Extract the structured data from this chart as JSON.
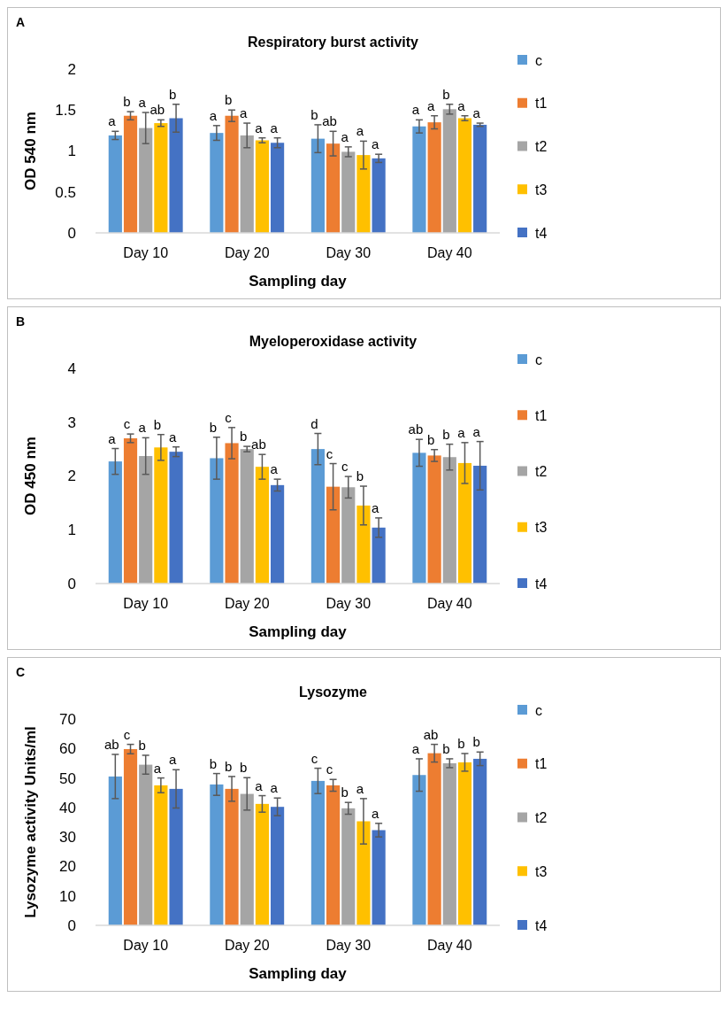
{
  "chart_data": [
    {
      "type": "bar",
      "title": "Respiratory burst activity",
      "xlabel": "Sampling day",
      "ylabel": "OD 540 nm",
      "annotations": [
        "A"
      ],
      "legend": "right",
      "categories": [
        "Day 10",
        "Day 20",
        "Day 30",
        "Day 40"
      ],
      "ylim": [
        0,
        2
      ],
      "yticks": [
        0,
        0.5,
        1,
        1.5,
        2
      ],
      "series": [
        {
          "name": "c",
          "color": "#5b9bd5",
          "values": [
            1.19,
            1.22,
            1.15,
            1.3
          ],
          "errors": [
            0.05,
            0.09,
            0.17,
            0.08
          ],
          "value_labels": [
            "a",
            "a",
            "b",
            "a"
          ]
        },
        {
          "name": "t1",
          "color": "#ed7d31",
          "values": [
            1.43,
            1.43,
            1.09,
            1.35
          ],
          "errors": [
            0.05,
            0.07,
            0.15,
            0.08
          ],
          "value_labels": [
            "b",
            "b",
            "ab",
            "a"
          ]
        },
        {
          "name": "t2",
          "color": "#a5a5a5",
          "values": [
            1.28,
            1.19,
            0.99,
            1.51
          ],
          "errors": [
            0.19,
            0.15,
            0.06,
            0.06
          ],
          "value_labels": [
            "a",
            "a",
            "a",
            "b"
          ]
        },
        {
          "name": "t3",
          "color": "#ffc000",
          "values": [
            1.34,
            1.13,
            0.95,
            1.4
          ],
          "errors": [
            0.04,
            0.03,
            0.17,
            0.03
          ],
          "value_labels": [
            "ab",
            "a",
            "a",
            "a"
          ]
        },
        {
          "name": "t4",
          "color": "#4472c4",
          "values": [
            1.4,
            1.1,
            0.91,
            1.32
          ],
          "errors": [
            0.17,
            0.06,
            0.05,
            0.02
          ],
          "value_labels": [
            "b",
            "a",
            "a",
            "a"
          ]
        }
      ]
    },
    {
      "type": "bar",
      "title": "Myeloperoxidase activity",
      "xlabel": "Sampling day",
      "ylabel": "OD 450 nm",
      "annotations": [
        "B"
      ],
      "legend": "right",
      "categories": [
        "Day 10",
        "Day 20",
        "Day 30",
        "Day 40"
      ],
      "ylim": [
        0,
        4
      ],
      "yticks": [
        0,
        1,
        2,
        3,
        4
      ],
      "series": [
        {
          "name": "c",
          "color": "#5b9bd5",
          "values": [
            2.27,
            2.33,
            2.5,
            2.43
          ],
          "errors": [
            0.24,
            0.39,
            0.29,
            0.25
          ],
          "value_labels": [
            "a",
            "b",
            "d",
            "ab"
          ]
        },
        {
          "name": "t1",
          "color": "#ed7d31",
          "values": [
            2.7,
            2.61,
            1.8,
            2.38
          ],
          "errors": [
            0.08,
            0.29,
            0.43,
            0.11
          ],
          "value_labels": [
            "c",
            "c",
            "c",
            "b"
          ]
        },
        {
          "name": "t2",
          "color": "#a5a5a5",
          "values": [
            2.37,
            2.5,
            1.79,
            2.35
          ],
          "errors": [
            0.34,
            0.05,
            0.2,
            0.24
          ],
          "value_labels": [
            "a",
            "b",
            "c",
            "b"
          ]
        },
        {
          "name": "t3",
          "color": "#ffc000",
          "values": [
            2.53,
            2.17,
            1.45,
            2.24
          ],
          "errors": [
            0.24,
            0.23,
            0.36,
            0.38
          ],
          "value_labels": [
            "b",
            "ab",
            "b",
            "a"
          ]
        },
        {
          "name": "t4",
          "color": "#4472c4",
          "values": [
            2.45,
            1.83,
            1.04,
            2.19
          ],
          "errors": [
            0.09,
            0.11,
            0.18,
            0.45
          ],
          "value_labels": [
            "a",
            "a",
            "a",
            "a"
          ]
        }
      ]
    },
    {
      "type": "bar",
      "title": "Lysozyme",
      "xlabel": "Sampling day",
      "ylabel": "Lysozyme activity Units/ml",
      "annotations": [
        "C"
      ],
      "legend": "right",
      "categories": [
        "Day 10",
        "Day 20",
        "Day 30",
        "Day 40"
      ],
      "ylim": [
        0,
        70
      ],
      "yticks": [
        0,
        10,
        20,
        30,
        40,
        50,
        60,
        70
      ],
      "series": [
        {
          "name": "c",
          "color": "#5b9bd5",
          "values": [
            50.5,
            47.8,
            49.0,
            51.0
          ],
          "errors": [
            7.5,
            3.7,
            4.3,
            5.5
          ],
          "value_labels": [
            "ab",
            "b",
            "c",
            "a"
          ]
        },
        {
          "name": "t1",
          "color": "#ed7d31",
          "values": [
            59.8,
            46.3,
            47.5,
            58.4
          ],
          "errors": [
            1.6,
            4.2,
            2.0,
            3.0
          ],
          "value_labels": [
            "c",
            "b",
            "c",
            "ab"
          ]
        },
        {
          "name": "t2",
          "color": "#a5a5a5",
          "values": [
            54.5,
            44.6,
            39.7,
            55.0
          ],
          "errors": [
            3.2,
            5.5,
            2.0,
            1.5
          ],
          "value_labels": [
            "b",
            "b",
            "b",
            "b"
          ]
        },
        {
          "name": "t3",
          "color": "#ffc000",
          "values": [
            47.5,
            41.2,
            35.3,
            55.3
          ],
          "errors": [
            2.5,
            2.8,
            7.7,
            3.0
          ],
          "value_labels": [
            "a",
            "a",
            "a",
            "b"
          ]
        },
        {
          "name": "t4",
          "color": "#4472c4",
          "values": [
            46.3,
            40.2,
            32.3,
            56.5
          ],
          "errors": [
            6.5,
            3.0,
            2.3,
            2.3
          ],
          "value_labels": [
            "a",
            "a",
            "a",
            "b"
          ]
        }
      ]
    }
  ]
}
